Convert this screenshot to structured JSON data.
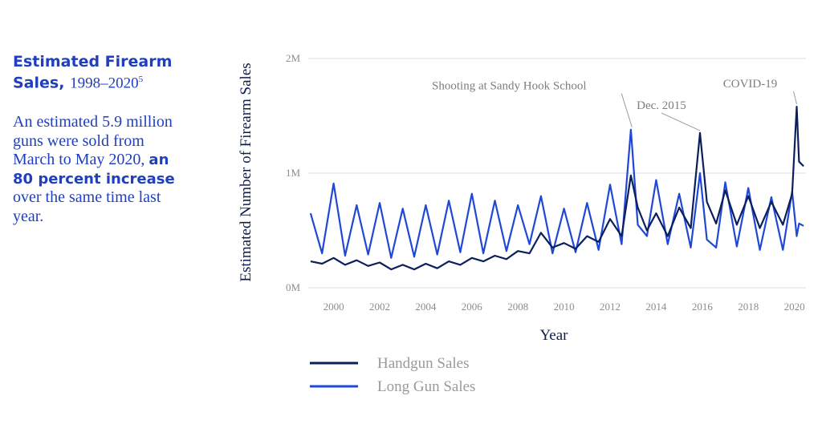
{
  "sidebar": {
    "title_main": "Estimated Firearm Sales,",
    "title_range": "1998–2020",
    "footnote": "5",
    "blurb_pre": "An estimated 5.9 million guns were sold from March to May 2020,",
    "blurb_strong": "an 80 percent increase",
    "blurb_post": "over the same time last year."
  },
  "colors": {
    "handgun": "#0b1f5c",
    "long_gun": "#1f48d6",
    "grid": "#dcdcdc",
    "title": "#1f3fbf"
  },
  "chart_data": {
    "type": "line",
    "xlabel": "Year",
    "ylabel": "Estimated Number of Firearm Sales",
    "xlim": [
      1998.9,
      2020.5
    ],
    "ylim": [
      0,
      2000000
    ],
    "xticks": [
      "2000",
      "2002",
      "2004",
      "2006",
      "2008",
      "2010",
      "2012",
      "2014",
      "2016",
      "2018",
      "2020"
    ],
    "yticks": [
      "0M",
      "1M",
      "2M"
    ],
    "grid": true,
    "legend_position": "bottom-left",
    "series": [
      {
        "name": "Handgun Sales",
        "x": [
          1999.0,
          1999.5,
          2000.0,
          2000.5,
          2001.0,
          2001.5,
          2002.0,
          2002.5,
          2003.0,
          2003.5,
          2004.0,
          2004.5,
          2005.0,
          2005.5,
          2006.0,
          2006.5,
          2007.0,
          2007.5,
          2008.0,
          2008.5,
          2009.0,
          2009.5,
          2010.0,
          2010.5,
          2011.0,
          2011.5,
          2012.0,
          2012.5,
          2012.9,
          2013.2,
          2013.6,
          2014.0,
          2014.5,
          2015.0,
          2015.5,
          2015.9,
          2016.2,
          2016.6,
          2017.0,
          2017.5,
          2018.0,
          2018.5,
          2019.0,
          2019.5,
          2019.9,
          2020.1,
          2020.2,
          2020.4
        ],
        "values": [
          230000,
          210000,
          260000,
          200000,
          240000,
          190000,
          220000,
          160000,
          200000,
          160000,
          210000,
          170000,
          230000,
          200000,
          260000,
          230000,
          280000,
          250000,
          320000,
          300000,
          480000,
          350000,
          390000,
          340000,
          450000,
          400000,
          600000,
          450000,
          980000,
          700000,
          500000,
          650000,
          450000,
          700000,
          520000,
          1350000,
          750000,
          560000,
          850000,
          550000,
          800000,
          520000,
          750000,
          550000,
          820000,
          1580000,
          1100000,
          1060000
        ]
      },
      {
        "name": "Long Gun Sales",
        "x": [
          1999.0,
          1999.5,
          2000.0,
          2000.5,
          2001.0,
          2001.5,
          2002.0,
          2002.5,
          2003.0,
          2003.5,
          2004.0,
          2004.5,
          2005.0,
          2005.5,
          2006.0,
          2006.5,
          2007.0,
          2007.5,
          2008.0,
          2008.5,
          2009.0,
          2009.5,
          2010.0,
          2010.5,
          2011.0,
          2011.5,
          2012.0,
          2012.5,
          2012.9,
          2013.2,
          2013.6,
          2014.0,
          2014.5,
          2015.0,
          2015.5,
          2015.9,
          2016.2,
          2016.6,
          2017.0,
          2017.5,
          2018.0,
          2018.5,
          2019.0,
          2019.5,
          2019.9,
          2020.1,
          2020.2,
          2020.4
        ],
        "values": [
          650000,
          300000,
          910000,
          280000,
          720000,
          290000,
          740000,
          260000,
          690000,
          270000,
          720000,
          290000,
          760000,
          310000,
          820000,
          300000,
          760000,
          320000,
          720000,
          380000,
          800000,
          300000,
          690000,
          310000,
          740000,
          330000,
          900000,
          380000,
          1380000,
          550000,
          450000,
          940000,
          380000,
          820000,
          350000,
          1000000,
          420000,
          350000,
          920000,
          360000,
          870000,
          330000,
          790000,
          330000,
          840000,
          450000,
          560000,
          540000
        ]
      }
    ],
    "annotations": [
      {
        "text": "Shooting at Sandy Hook School",
        "x": 2012.95,
        "y": 1380000
      },
      {
        "text": "Dec. 2015",
        "x": 2015.9,
        "y": 1350000
      },
      {
        "text": "COVID-19",
        "x": 2020.1,
        "y": 1580000
      }
    ]
  }
}
